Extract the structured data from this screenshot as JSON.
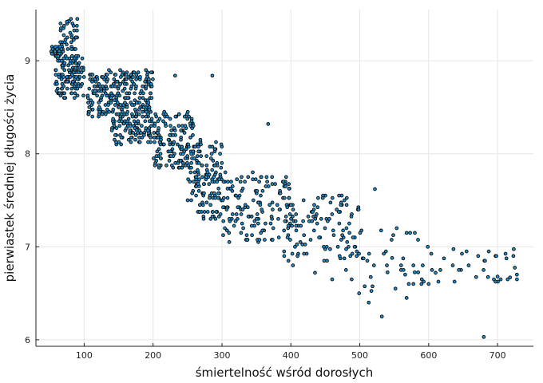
{
  "chart_data": {
    "type": "scatter",
    "xlabel": "śmiertelność wśród dorosłych",
    "ylabel": "pierwiastek średniej długości życia",
    "title": "",
    "xlim": [
      30,
      752
    ],
    "ylim": [
      5.93,
      9.55
    ],
    "xticks": [
      100,
      200,
      300,
      400,
      500,
      600,
      700
    ],
    "yticks": [
      6,
      7,
      8,
      9
    ],
    "grid": true,
    "legend": false,
    "marker_color": "#1f8fcf",
    "marker_edge_color": "#0a0a0a",
    "clusters": [
      {
        "x": [
          50,
          70
        ],
        "y": [
          9.05,
          9.15
        ],
        "n": 30
      },
      {
        "x": [
          58,
          100
        ],
        "y": [
          8.6,
          9.05
        ],
        "n": 130
      },
      {
        "x": [
          65,
          90
        ],
        "y": [
          9.1,
          9.45
        ],
        "n": 40
      },
      {
        "x": [
          105,
          200
        ],
        "y": [
          8.4,
          8.9
        ],
        "n": 260
      },
      {
        "x": [
          140,
          200
        ],
        "y": [
          8.1,
          8.4
        ],
        "n": 90
      },
      {
        "x": [
          200,
          260
        ],
        "y": [
          7.85,
          8.45
        ],
        "n": 150
      },
      {
        "x": [
          250,
          300
        ],
        "y": [
          7.5,
          8.2
        ],
        "n": 70
      },
      {
        "x": [
          260,
          300
        ],
        "y": [
          7.3,
          7.9
        ],
        "n": 60
      },
      {
        "x": [
          300,
          400
        ],
        "y": [
          7.05,
          7.8
        ],
        "n": 140
      },
      {
        "x": [
          390,
          500
        ],
        "y": [
          6.85,
          7.55
        ],
        "n": 110
      },
      {
        "x": [
          480,
          590
        ],
        "y": [
          6.5,
          7.2
        ],
        "n": 40
      },
      {
        "x": [
          580,
          730
        ],
        "y": [
          6.6,
          7.0
        ],
        "n": 35
      }
    ],
    "points": [
      [
        90,
        9.45
      ],
      [
        75,
        9.42
      ],
      [
        232,
        8.84
      ],
      [
        286,
        8.84
      ],
      [
        367,
        8.32
      ],
      [
        522,
        7.62
      ],
      [
        513,
        6.4
      ],
      [
        532,
        6.25
      ],
      [
        568,
        6.45
      ],
      [
        680,
        6.03
      ],
      [
        700,
        6.68
      ],
      [
        728,
        6.7
      ],
      [
        718,
        6.67
      ],
      [
        655,
        6.95
      ],
      [
        635,
        6.8
      ],
      [
        610,
        6.72
      ],
      [
        600,
        6.6
      ],
      [
        590,
        6.65
      ],
      [
        560,
        6.8
      ],
      [
        547,
        6.88
      ],
      [
        499,
        6.5
      ],
      [
        480,
        6.75
      ],
      [
        460,
        6.65
      ],
      [
        435,
        6.72
      ],
      [
        403,
        6.8
      ]
    ]
  }
}
